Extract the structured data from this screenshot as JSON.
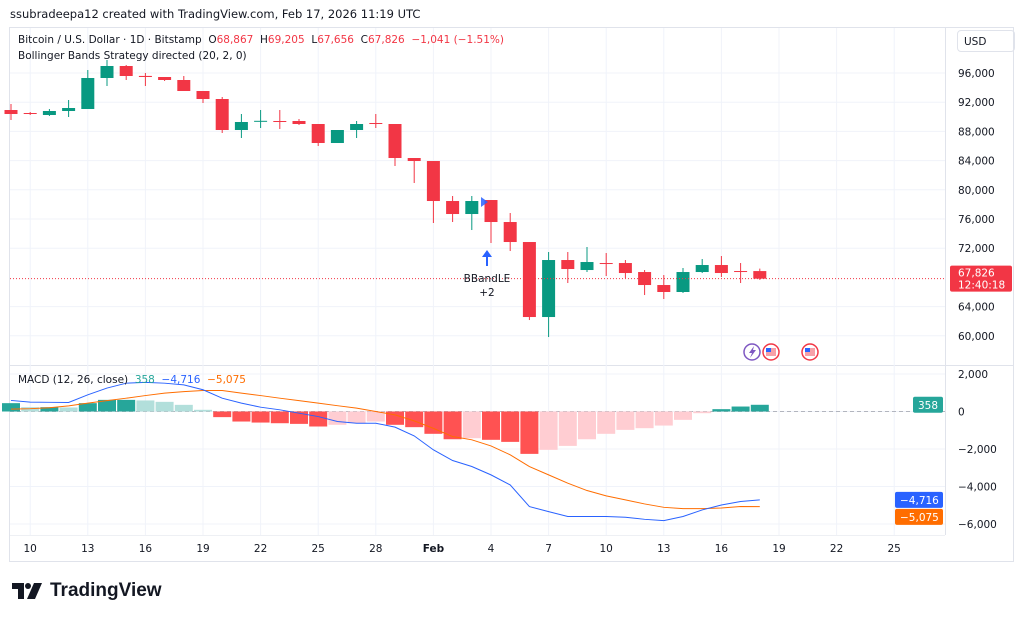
{
  "credit": "ssubradeepa12 created with TradingView.com, Feb 17, 2026 11:19 UTC",
  "symbol": {
    "title": "Bitcoin / U.S. Dollar · 1D · Bitstamp",
    "open_label": "O",
    "open": "68,867",
    "high_label": "H",
    "high": "69,205",
    "low_label": "L",
    "low": "67,656",
    "close_label": "C",
    "close": "67,826",
    "change": "−1,041 (−1.51%)"
  },
  "strategy_label": "Bollinger Bands Strategy directed (20, 2, 0)",
  "currency_button": "USD",
  "price_badge": {
    "price": "67,826",
    "countdown": "12:40:18",
    "value": 67826
  },
  "signal": {
    "label": "BBandLE",
    "qty": "+2",
    "date": "Feb 3"
  },
  "macd": {
    "label": "MACD (12, 26, close)",
    "hist_value": "358",
    "macd_value": "−4,716",
    "signal_value": "−5,075",
    "badges": [
      {
        "text": "358",
        "value": 358,
        "color": "#26a69a"
      },
      {
        "text": "−4,716",
        "value": -4716,
        "color": "#2962ff"
      },
      {
        "text": "−5,075",
        "value": -5075,
        "color": "#ff6d00"
      }
    ]
  },
  "colors": {
    "up": "#089981",
    "down": "#f23645",
    "macd_line": "#2962ff",
    "signal_line": "#ff6d00",
    "hist_up_strong": "#26a69a",
    "hist_up_weak": "#b2dfdb",
    "hist_down_strong": "#ff5252",
    "hist_down_weak": "#ffcdd2"
  },
  "events": [
    {
      "icon": "lightning-icon",
      "date": "Feb 17"
    },
    {
      "icon": "us-flag-icon",
      "date": "Feb 18"
    },
    {
      "icon": "us-flag-icon",
      "date": "Feb 20"
    }
  ],
  "chart_data": [
    {
      "type": "candlestick",
      "price_ticks": [
        "96,000",
        "92,000",
        "88,000",
        "84,000",
        "80,000",
        "76,000",
        "72,000",
        "64,000",
        "60,000"
      ],
      "price_tick_values": [
        96000,
        92000,
        88000,
        84000,
        80000,
        76000,
        72000,
        64000,
        60000
      ],
      "ylim": [
        58000,
        99000
      ],
      "x_ticks": [
        "10",
        "13",
        "16",
        "19",
        "22",
        "25",
        "28",
        "Feb",
        "4",
        "7",
        "10",
        "13",
        "16",
        "19",
        "22",
        "25"
      ],
      "candles": [
        {
          "date": "Jan 9",
          "o": 90931,
          "h": 91753,
          "l": 89561,
          "c": 90383
        },
        {
          "date": "Jan 10",
          "o": 90520,
          "h": 90657,
          "l": 90246,
          "c": 90383
        },
        {
          "date": "Jan 11",
          "o": 90246,
          "h": 91068,
          "l": 90109,
          "c": 90794
        },
        {
          "date": "Jan 12",
          "o": 90794,
          "h": 92301,
          "l": 89972,
          "c": 91205
        },
        {
          "date": "Jan 13",
          "o": 91068,
          "h": 96411,
          "l": 91068,
          "c": 95315
        },
        {
          "date": "Jan 14",
          "o": 95315,
          "h": 97781,
          "l": 94219,
          "c": 96959
        },
        {
          "date": "Jan 15",
          "o": 96959,
          "h": 97096,
          "l": 95041,
          "c": 95589
        },
        {
          "date": "Jan 16",
          "o": 95600,
          "h": 96000,
          "l": 94219,
          "c": 95452
        },
        {
          "date": "Jan 17",
          "o": 95452,
          "h": 95452,
          "l": 94904,
          "c": 95041
        },
        {
          "date": "Jan 18",
          "o": 95041,
          "h": 95589,
          "l": 93534,
          "c": 93534
        },
        {
          "date": "Jan 19",
          "o": 93534,
          "h": 93534,
          "l": 91890,
          "c": 92438
        },
        {
          "date": "Jan 20",
          "o": 92438,
          "h": 92712,
          "l": 87780,
          "c": 88191
        },
        {
          "date": "Jan 21",
          "o": 88191,
          "h": 90383,
          "l": 87095,
          "c": 89287
        },
        {
          "date": "Jan 22",
          "o": 89424,
          "h": 90931,
          "l": 88465,
          "c": 89450
        },
        {
          "date": "Jan 23",
          "o": 89424,
          "h": 90931,
          "l": 88328,
          "c": 89400
        },
        {
          "date": "Jan 24",
          "o": 89424,
          "h": 89698,
          "l": 88876,
          "c": 89013
        },
        {
          "date": "Jan 25",
          "o": 89013,
          "h": 89013,
          "l": 85999,
          "c": 86410
        },
        {
          "date": "Jan 26",
          "o": 86410,
          "h": 88191,
          "l": 86410,
          "c": 88191
        },
        {
          "date": "Jan 27",
          "o": 88191,
          "h": 89424,
          "l": 87095,
          "c": 89013
        },
        {
          "date": "Jan 28",
          "o": 89150,
          "h": 90383,
          "l": 88465,
          "c": 89100
        },
        {
          "date": "Jan 29",
          "o": 89013,
          "h": 89013,
          "l": 83259,
          "c": 84355
        },
        {
          "date": "Jan 30",
          "o": 84355,
          "h": 84355,
          "l": 80930,
          "c": 83944
        },
        {
          "date": "Jan 31",
          "o": 83944,
          "h": 83944,
          "l": 75450,
          "c": 78464
        },
        {
          "date": "Feb 1",
          "o": 78464,
          "h": 79149,
          "l": 75587,
          "c": 76683
        },
        {
          "date": "Feb 2",
          "o": 76683,
          "h": 79149,
          "l": 74491,
          "c": 78464
        },
        {
          "date": "Feb 3",
          "o": 78601,
          "h": 78601,
          "l": 72710,
          "c": 75587
        },
        {
          "date": "Feb 4",
          "o": 75587,
          "h": 76820,
          "l": 71614,
          "c": 72847
        },
        {
          "date": "Feb 5",
          "o": 72847,
          "h": 72847,
          "l": 62161,
          "c": 62572
        },
        {
          "date": "Feb 6",
          "o": 62572,
          "h": 71477,
          "l": 59832,
          "c": 70381
        },
        {
          "date": "Feb 7",
          "o": 70381,
          "h": 71477,
          "l": 67230,
          "c": 69148
        },
        {
          "date": "Feb 8",
          "o": 69011,
          "h": 72162,
          "l": 68737,
          "c": 70107
        },
        {
          "date": "Feb 9",
          "o": 69970,
          "h": 71340,
          "l": 68189,
          "c": 69833
        },
        {
          "date": "Feb 10",
          "o": 69970,
          "h": 70381,
          "l": 67915,
          "c": 68600
        },
        {
          "date": "Feb 11",
          "o": 68737,
          "h": 69011,
          "l": 65586,
          "c": 66956
        },
        {
          "date": "Feb 12",
          "o": 66956,
          "h": 68326,
          "l": 65038,
          "c": 66000
        },
        {
          "date": "Feb 13",
          "o": 66000,
          "h": 69285,
          "l": 65863,
          "c": 68737
        },
        {
          "date": "Feb 14",
          "o": 68737,
          "h": 70518,
          "l": 68600,
          "c": 69696
        },
        {
          "date": "Feb 15",
          "o": 69696,
          "h": 70929,
          "l": 68052,
          "c": 68600
        },
        {
          "date": "Feb 16",
          "o": 68874,
          "h": 69970,
          "l": 67230,
          "c": 68800
        },
        {
          "date": "Feb 17",
          "o": 68867,
          "h": 69205,
          "l": 67656,
          "c": 67826
        }
      ]
    },
    {
      "type": "macd",
      "y_ticks": [
        "2,000",
        "0",
        "−2,000",
        "−4,000",
        "−6,000"
      ],
      "y_tick_values": [
        2000,
        0,
        -2000,
        -4000,
        -6000
      ],
      "histogram": [
        445,
        230,
        230,
        215,
        445,
        620,
        620,
        590,
        515,
        355,
        90,
        -300,
        -535,
        -590,
        -625,
        -660,
        -800,
        -710,
        -625,
        -535,
        -710,
        -835,
        -1190,
        -1480,
        -1425,
        -1510,
        -1620,
        -2260,
        -2045,
        -1835,
        -1480,
        -1190,
        -980,
        -890,
        -750,
        -445,
        -90,
        125,
        265,
        358
      ],
      "macd_line": [
        590,
        500,
        490,
        480,
        890,
        1250,
        1510,
        1550,
        1510,
        1420,
        1160,
        710,
        445,
        230,
        90,
        -90,
        -270,
        -535,
        -625,
        -625,
        -835,
        -1300,
        -2045,
        -2615,
        -2935,
        -3380,
        -3915,
        -5070,
        -5340,
        -5600,
        -5600,
        -5600,
        -5640,
        -5750,
        -5820,
        -5600,
        -5250,
        -4985,
        -4800,
        -4716
      ],
      "signal_line": [
        125,
        150,
        200,
        300,
        445,
        580,
        710,
        850,
        980,
        1060,
        1120,
        1120,
        980,
        850,
        710,
        580,
        445,
        310,
        180,
        0,
        -180,
        -500,
        -900,
        -1335,
        -1510,
        -1835,
        -2310,
        -2935,
        -3380,
        -3825,
        -4215,
        -4500,
        -4715,
        -4930,
        -5110,
        -5180,
        -5180,
        -5145,
        -5070,
        -5075
      ]
    }
  ]
}
